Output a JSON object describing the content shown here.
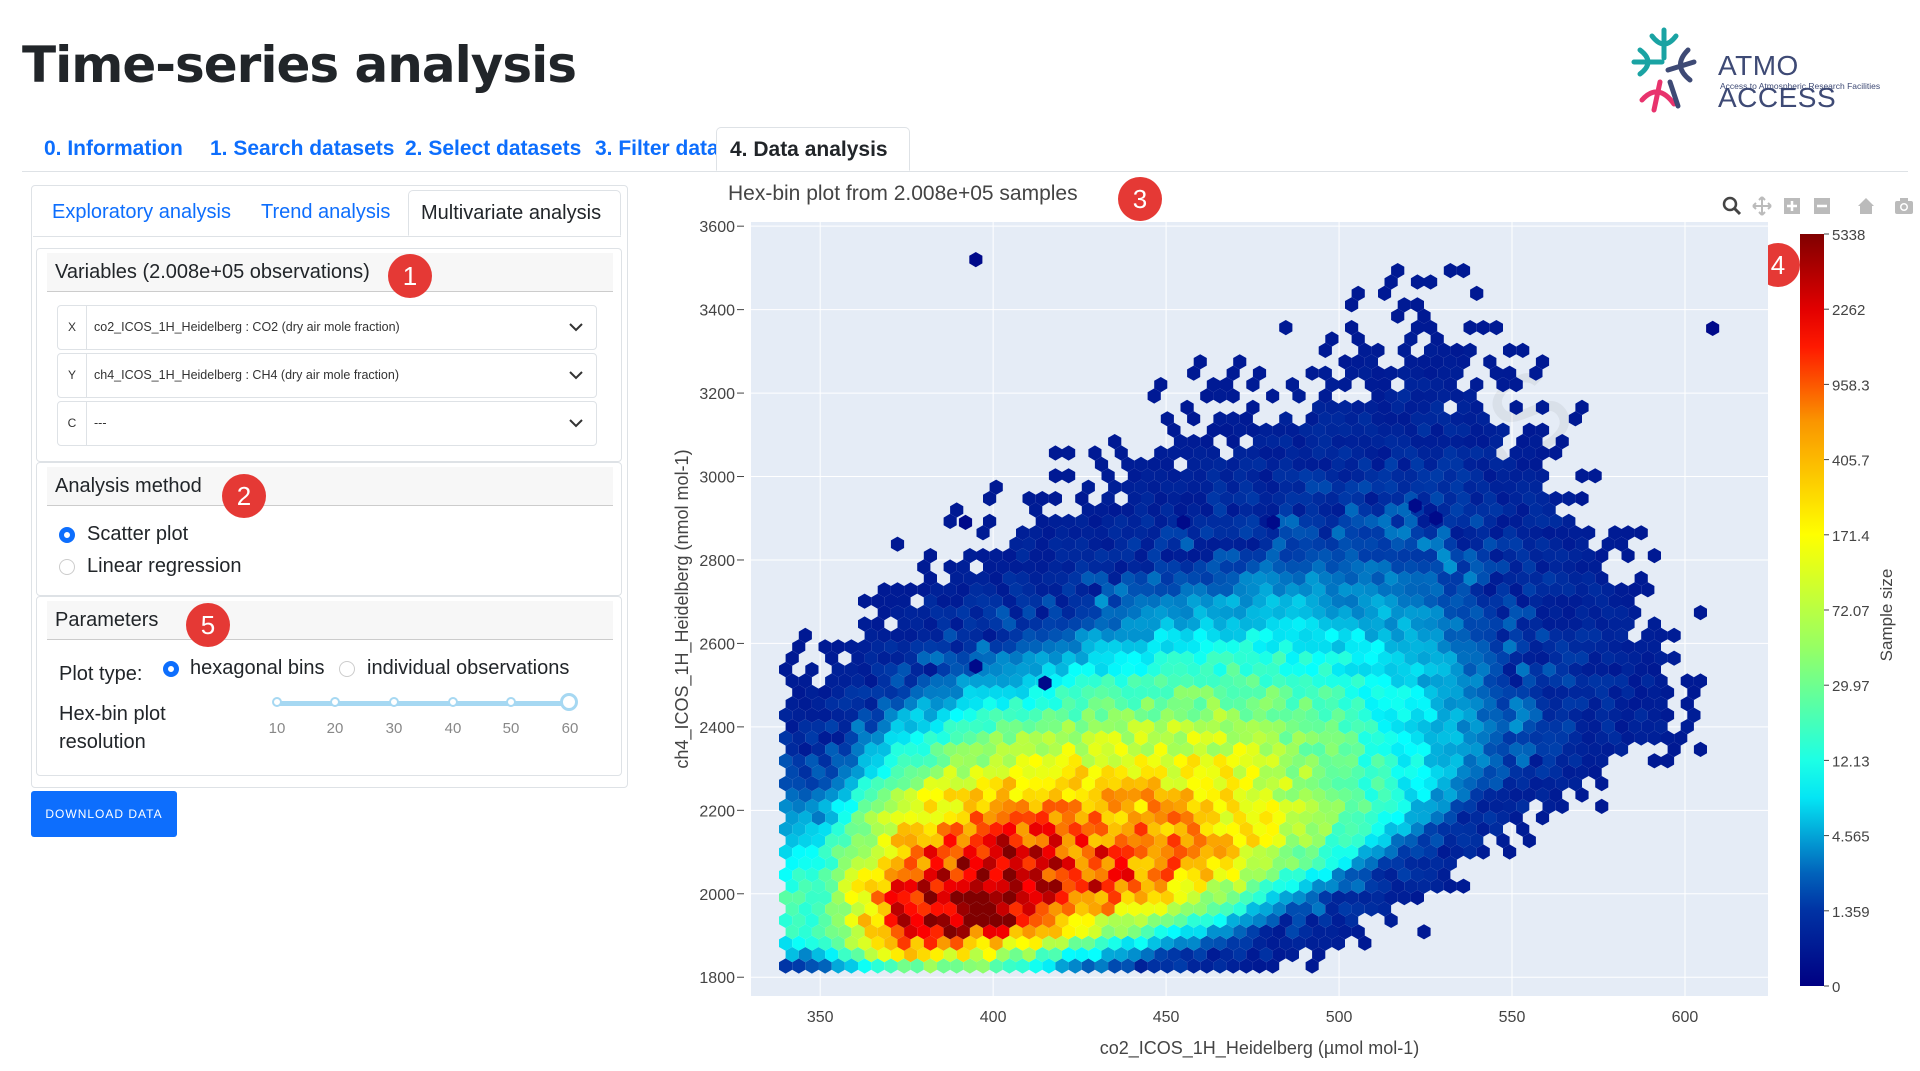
{
  "page": {
    "title": "Time-series analysis"
  },
  "logo": {
    "name": "ATMO ACCESS",
    "subtitle": "Access to Atmospheric Research Facilities"
  },
  "tabs": [
    {
      "label": "0. Information"
    },
    {
      "label": "1. Search datasets"
    },
    {
      "label": "2. Select datasets"
    },
    {
      "label": "3. Filter data"
    },
    {
      "label": "4. Data analysis",
      "active": true
    }
  ],
  "subtabs": [
    {
      "label": "Exploratory analysis"
    },
    {
      "label": "Trend analysis"
    },
    {
      "label": "Multivariate analysis",
      "active": true
    }
  ],
  "variables": {
    "header": "Variables (2.008e+05 observations)",
    "rows": [
      {
        "axis": "X",
        "value": "co2_ICOS_1H_Heidelberg : CO2 (dry air mole fraction)"
      },
      {
        "axis": "Y",
        "value": "ch4_ICOS_1H_Heidelberg : CH4 (dry air mole fraction)"
      },
      {
        "axis": "C",
        "value": "---"
      }
    ]
  },
  "analysis_method": {
    "header": "Analysis method",
    "options": [
      {
        "label": "Scatter plot",
        "selected": true
      },
      {
        "label": "Linear regression",
        "selected": false
      }
    ]
  },
  "parameters": {
    "header": "Parameters",
    "plot_type_label": "Plot type:",
    "plot_type_options": [
      {
        "label": "hexagonal bins",
        "selected": true
      },
      {
        "label": "individual observations",
        "selected": false
      }
    ],
    "resolution_label_1": "Hex-bin plot",
    "resolution_label_2": "resolution",
    "slider_marks": [
      "10",
      "20",
      "30",
      "40",
      "50",
      "60"
    ],
    "slider_value": 60
  },
  "download_button": "DOWNLOAD DATA",
  "badges": [
    "1",
    "2",
    "3",
    "4",
    "5"
  ],
  "plot": {
    "title": "Hex-bin plot from 2.008e+05 samples",
    "watermark": "ATMO ACCESS",
    "modebar": [
      "zoom-icon",
      "pan-icon",
      "zoom-in-icon",
      "zoom-out-icon",
      "home-icon",
      "camera-icon"
    ]
  },
  "chart_data": {
    "type": "heatmap",
    "subtype": "hexbin",
    "title": "Hex-bin plot from 2.008e+05 samples",
    "xlabel": "co2_ICOS_1H_Heidelberg (µmol mol-1)",
    "ylabel": "ch4_ICOS_1H_Heidelberg (nmol mol-1)",
    "xlim": [
      330,
      624
    ],
    "ylim": [
      1755,
      3610
    ],
    "xticks": [
      350,
      400,
      450,
      500,
      550,
      600
    ],
    "yticks": [
      1800,
      2000,
      2200,
      2400,
      2600,
      2800,
      3000,
      3200,
      3400,
      3600
    ],
    "colorbar": {
      "title": "Sample size",
      "scale": "log",
      "ticks": [
        "5338",
        "2262",
        "958.3",
        "405.7",
        "171.4",
        "72.07",
        "29.97",
        "12.13",
        "4.565",
        "1.359",
        "0"
      ],
      "colormap": "jet"
    },
    "grid": true,
    "background": "#e5ecf6",
    "outliers": [
      [
        395,
        3520
      ],
      [
        608,
        3355
      ],
      [
        392,
        2890
      ],
      [
        455,
        2890
      ],
      [
        481,
        2890
      ],
      [
        522,
        2930
      ],
      [
        528,
        2900
      ],
      [
        395,
        2545
      ],
      [
        415,
        2505
      ]
    ],
    "density_ridge": [
      {
        "x": 350,
        "y_center": 1930,
        "y_spread": 90,
        "peak": 0.35
      },
      {
        "x": 375,
        "y_center": 1930,
        "y_spread": 110,
        "peak": 0.9
      },
      {
        "x": 400,
        "y_center": 1960,
        "y_spread": 120,
        "peak": 1.0
      },
      {
        "x": 425,
        "y_center": 2010,
        "y_spread": 130,
        "peak": 0.85
      },
      {
        "x": 450,
        "y_center": 2060,
        "y_spread": 140,
        "peak": 0.75
      },
      {
        "x": 475,
        "y_center": 2120,
        "y_spread": 150,
        "peak": 0.6
      },
      {
        "x": 500,
        "y_center": 2200,
        "y_spread": 160,
        "peak": 0.4
      },
      {
        "x": 525,
        "y_center": 2290,
        "y_spread": 170,
        "peak": 0.25
      },
      {
        "x": 550,
        "y_center": 2380,
        "y_spread": 150,
        "peak": 0.12
      },
      {
        "x": 575,
        "y_center": 2420,
        "y_spread": 120,
        "peak": 0.05
      },
      {
        "x": 600,
        "y_center": 2420,
        "y_spread": 60,
        "peak": 0.02
      }
    ]
  }
}
